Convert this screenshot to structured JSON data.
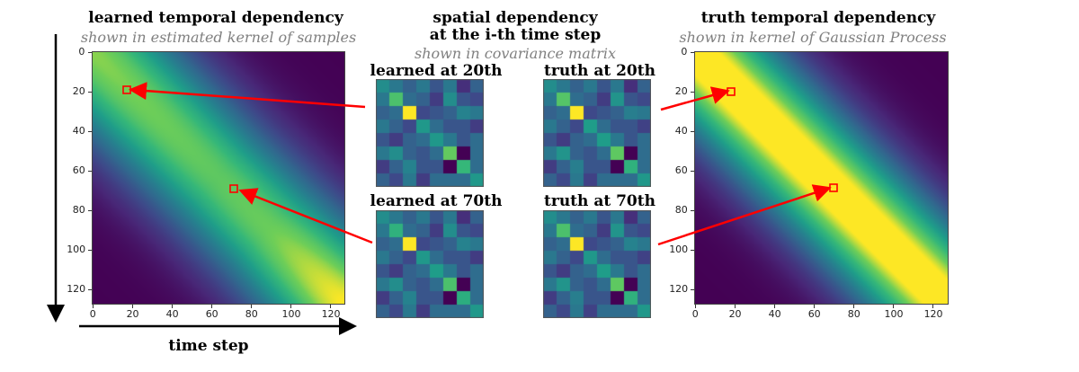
{
  "left_panel": {
    "title": "learned temporal dependency",
    "subtitle": "shown in estimated kernel of samples"
  },
  "center_panel": {
    "title_line1": "spatial dependency",
    "title_line2": "at the i-th time step",
    "subtitle": "shown in covariance matrix",
    "labels": {
      "learned_20": "learned at 20th",
      "truth_20": "truth at 20th",
      "learned_70": "learned at 70th",
      "truth_70": "truth at 70th"
    }
  },
  "right_panel": {
    "title": "truth temporal dependency",
    "subtitle": "shown in kernel of Gaussian Process"
  },
  "xaxis_label": "time step",
  "colors": {
    "arrow": "#ff0000",
    "colormap": "viridis"
  },
  "chart_data": [
    {
      "type": "heatmap",
      "name": "learned temporal kernel",
      "size": 128,
      "xlim": [
        0,
        127
      ],
      "ylim": [
        127,
        0
      ],
      "xticks": [
        "0",
        "20",
        "40",
        "60",
        "80",
        "100",
        "120"
      ],
      "yticks": [
        "0",
        "20",
        "40",
        "60",
        "80",
        "100",
        "120"
      ],
      "highlighted": [
        [
          18,
          20
        ],
        [
          71,
          70
        ]
      ]
    },
    {
      "type": "heatmap",
      "name": "truth temporal kernel",
      "size": 128,
      "xlim": [
        0,
        127
      ],
      "ylim": [
        127,
        0
      ],
      "xticks": [
        "0",
        "20",
        "40",
        "60",
        "80",
        "100",
        "120"
      ],
      "yticks": [
        "0",
        "20",
        "40",
        "60",
        "80",
        "100",
        "120"
      ],
      "highlighted": [
        [
          18,
          21
        ],
        [
          70,
          69
        ]
      ]
    },
    {
      "type": "heatmap",
      "name": "learned at 20th",
      "matrix": [
        [
          0.55,
          0.45,
          0.35,
          0.45,
          0.3,
          0.45,
          0.15,
          0.35
        ],
        [
          0.45,
          0.8,
          0.4,
          0.35,
          0.2,
          0.55,
          0.3,
          0.25
        ],
        [
          0.35,
          0.4,
          1.0,
          0.25,
          0.3,
          0.35,
          0.5,
          0.45
        ],
        [
          0.45,
          0.35,
          0.25,
          0.6,
          0.4,
          0.3,
          0.3,
          0.2
        ],
        [
          0.3,
          0.2,
          0.35,
          0.4,
          0.6,
          0.45,
          0.3,
          0.4
        ],
        [
          0.45,
          0.55,
          0.35,
          0.3,
          0.4,
          0.85,
          0.0,
          0.4
        ],
        [
          0.2,
          0.35,
          0.5,
          0.3,
          0.3,
          0.0,
          0.75,
          0.4
        ],
        [
          0.35,
          0.25,
          0.45,
          0.2,
          0.4,
          0.4,
          0.4,
          0.6
        ]
      ]
    },
    {
      "type": "heatmap",
      "name": "truth at 20th",
      "matrix": [
        [
          0.55,
          0.45,
          0.35,
          0.45,
          0.3,
          0.45,
          0.15,
          0.35
        ],
        [
          0.45,
          0.82,
          0.4,
          0.35,
          0.2,
          0.58,
          0.3,
          0.25
        ],
        [
          0.35,
          0.4,
          1.0,
          0.25,
          0.3,
          0.35,
          0.48,
          0.45
        ],
        [
          0.45,
          0.35,
          0.25,
          0.62,
          0.4,
          0.3,
          0.3,
          0.22
        ],
        [
          0.3,
          0.2,
          0.35,
          0.4,
          0.62,
          0.45,
          0.3,
          0.4
        ],
        [
          0.45,
          0.58,
          0.35,
          0.3,
          0.4,
          0.84,
          0.0,
          0.4
        ],
        [
          0.2,
          0.35,
          0.48,
          0.3,
          0.3,
          0.0,
          0.72,
          0.4
        ],
        [
          0.35,
          0.25,
          0.45,
          0.22,
          0.4,
          0.4,
          0.4,
          0.6
        ]
      ]
    },
    {
      "type": "heatmap",
      "name": "learned at 70th",
      "matrix": [
        [
          0.55,
          0.45,
          0.35,
          0.45,
          0.3,
          0.45,
          0.15,
          0.35
        ],
        [
          0.45,
          0.72,
          0.4,
          0.35,
          0.2,
          0.55,
          0.3,
          0.25
        ],
        [
          0.35,
          0.4,
          1.0,
          0.25,
          0.3,
          0.35,
          0.5,
          0.45
        ],
        [
          0.45,
          0.35,
          0.25,
          0.6,
          0.4,
          0.3,
          0.3,
          0.2
        ],
        [
          0.3,
          0.2,
          0.35,
          0.4,
          0.62,
          0.45,
          0.3,
          0.4
        ],
        [
          0.45,
          0.55,
          0.35,
          0.3,
          0.4,
          0.8,
          0.0,
          0.4
        ],
        [
          0.2,
          0.35,
          0.5,
          0.3,
          0.3,
          0.0,
          0.7,
          0.4
        ],
        [
          0.35,
          0.25,
          0.45,
          0.2,
          0.4,
          0.4,
          0.4,
          0.6
        ]
      ]
    },
    {
      "type": "heatmap",
      "name": "truth at 70th",
      "matrix": [
        [
          0.55,
          0.45,
          0.35,
          0.45,
          0.3,
          0.45,
          0.15,
          0.35
        ],
        [
          0.45,
          0.8,
          0.4,
          0.35,
          0.2,
          0.58,
          0.3,
          0.25
        ],
        [
          0.35,
          0.4,
          1.0,
          0.25,
          0.3,
          0.35,
          0.5,
          0.45
        ],
        [
          0.45,
          0.35,
          0.25,
          0.6,
          0.4,
          0.3,
          0.3,
          0.22
        ],
        [
          0.3,
          0.2,
          0.35,
          0.4,
          0.62,
          0.45,
          0.3,
          0.4
        ],
        [
          0.45,
          0.58,
          0.35,
          0.3,
          0.4,
          0.84,
          0.0,
          0.4
        ],
        [
          0.2,
          0.35,
          0.48,
          0.3,
          0.3,
          0.0,
          0.72,
          0.4
        ],
        [
          0.35,
          0.25,
          0.45,
          0.22,
          0.4,
          0.4,
          0.4,
          0.6
        ]
      ]
    }
  ]
}
